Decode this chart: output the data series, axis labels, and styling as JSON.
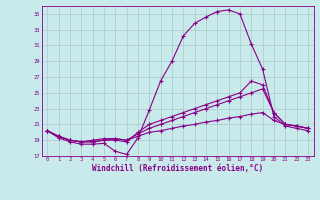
{
  "xlabel": "Windchill (Refroidissement éolien,°C)",
  "xlim": [
    -0.5,
    23.5
  ],
  "ylim": [
    17,
    36
  ],
  "yticks": [
    17,
    19,
    21,
    23,
    25,
    27,
    29,
    31,
    33,
    35
  ],
  "xticks": [
    0,
    1,
    2,
    3,
    4,
    5,
    6,
    7,
    8,
    9,
    10,
    11,
    12,
    13,
    14,
    15,
    16,
    17,
    18,
    19,
    20,
    21,
    22,
    23
  ],
  "bg_color": "#c8eaea",
  "line_color": "#880088",
  "grid_color": "#aacaca",
  "lines": [
    {
      "x": [
        0,
        1,
        2,
        3,
        4,
        5,
        6,
        7,
        8,
        9,
        10,
        11,
        12,
        13,
        14,
        15,
        16,
        17,
        18,
        19,
        20,
        21,
        22,
        23
      ],
      "y": [
        20.2,
        19.3,
        18.8,
        18.5,
        18.5,
        18.6,
        17.6,
        17.2,
        19.3,
        22.8,
        26.5,
        29.0,
        32.2,
        33.8,
        34.6,
        35.3,
        35.5,
        35.0,
        31.2,
        28.0,
        22.0,
        20.8,
        20.5,
        20.2
      ]
    },
    {
      "x": [
        0,
        1,
        2,
        3,
        4,
        5,
        6,
        7,
        8,
        9,
        10,
        11,
        12,
        13,
        14,
        15,
        16,
        17,
        18,
        19,
        20,
        21,
        22,
        23
      ],
      "y": [
        20.2,
        19.5,
        19.0,
        18.8,
        18.8,
        19.0,
        19.0,
        18.8,
        20.0,
        21.0,
        21.5,
        22.0,
        22.5,
        23.0,
        23.5,
        24.0,
        24.5,
        25.0,
        26.5,
        26.0,
        22.5,
        21.0,
        20.8,
        20.5
      ]
    },
    {
      "x": [
        0,
        1,
        2,
        3,
        4,
        5,
        6,
        7,
        8,
        9,
        10,
        11,
        12,
        13,
        14,
        15,
        16,
        17,
        18,
        19,
        20,
        21,
        22,
        23
      ],
      "y": [
        20.2,
        19.5,
        19.0,
        18.8,
        19.0,
        19.2,
        19.2,
        19.0,
        19.8,
        20.5,
        21.0,
        21.5,
        22.0,
        22.5,
        23.0,
        23.5,
        24.0,
        24.5,
        25.0,
        25.5,
        22.5,
        21.0,
        20.8,
        20.5
      ]
    },
    {
      "x": [
        0,
        1,
        2,
        3,
        4,
        5,
        6,
        7,
        8,
        9,
        10,
        11,
        12,
        13,
        14,
        15,
        16,
        17,
        18,
        19,
        20,
        21,
        22,
        23
      ],
      "y": [
        20.2,
        19.5,
        19.0,
        18.8,
        18.8,
        19.0,
        19.2,
        19.0,
        19.5,
        20.0,
        20.2,
        20.5,
        20.8,
        21.0,
        21.3,
        21.5,
        21.8,
        22.0,
        22.3,
        22.5,
        21.5,
        21.0,
        20.8,
        20.5
      ]
    }
  ]
}
